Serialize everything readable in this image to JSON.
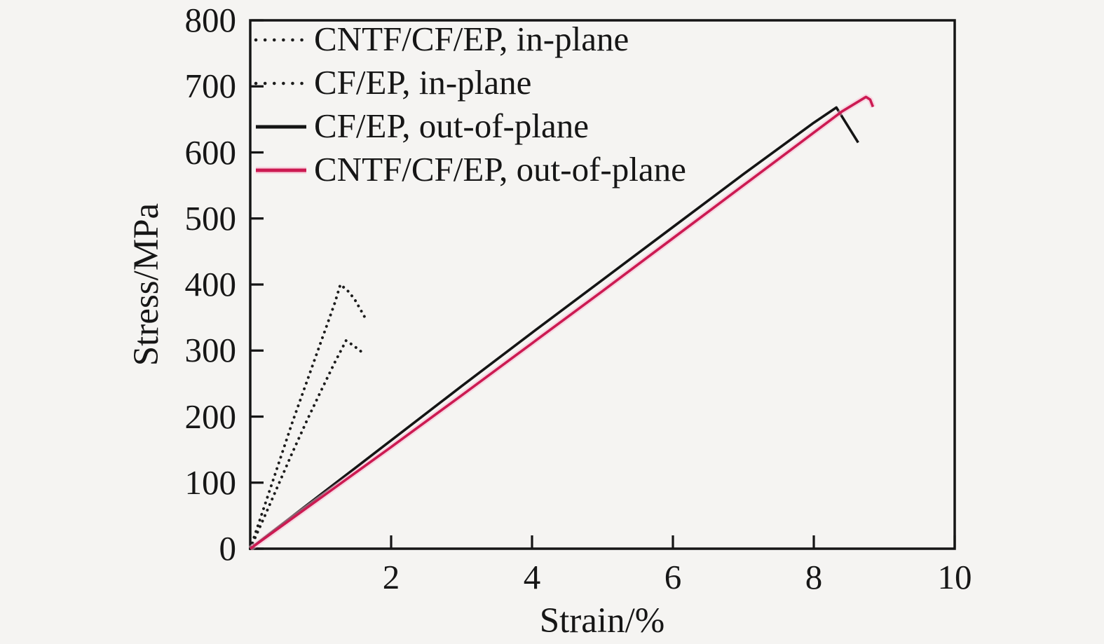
{
  "figure": {
    "background": "#f5f4f2",
    "frame_color": "#151515",
    "text_color": "#161616",
    "accent_red": "#cc1a52",
    "accent_red_halo": "#f9b7cf"
  },
  "chart_data": {
    "type": "line",
    "title": "",
    "xlabel": "Strain/%",
    "ylabel": "Stress/MPa",
    "xlim": [
      0,
      10
    ],
    "ylim": [
      0,
      800
    ],
    "x_ticks": [
      2,
      4,
      6,
      8,
      10
    ],
    "y_ticks": [
      0,
      100,
      200,
      300,
      400,
      500,
      600,
      700,
      800
    ],
    "grid": false,
    "legend_position": "top-left-inside",
    "series": [
      {
        "name": "CNTF/CF/EP, in-plane",
        "line_style": "dotted",
        "color": "#1c1c1c",
        "points": [
          [
            0,
            0
          ],
          [
            0.2,
            64
          ],
          [
            0.4,
            128
          ],
          [
            0.6,
            192
          ],
          [
            0.8,
            252
          ],
          [
            1.0,
            312
          ],
          [
            1.1,
            342
          ],
          [
            1.2,
            372
          ],
          [
            1.28,
            400
          ],
          [
            1.38,
            391
          ],
          [
            1.48,
            378
          ],
          [
            1.56,
            363
          ],
          [
            1.65,
            346
          ]
        ]
      },
      {
        "name": "CF/EP, in-plane",
        "line_style": "dotted",
        "color": "#1c1c1c",
        "points": [
          [
            0,
            0
          ],
          [
            0.2,
            48
          ],
          [
            0.4,
            97
          ],
          [
            0.6,
            146
          ],
          [
            0.8,
            193
          ],
          [
            1.0,
            238
          ],
          [
            1.2,
            282
          ],
          [
            1.36,
            315
          ],
          [
            1.46,
            308
          ],
          [
            1.58,
            298
          ]
        ]
      },
      {
        "name": "CF/EP, out-of-plane",
        "line_style": "solid",
        "color": "#141414",
        "points": [
          [
            0,
            0
          ],
          [
            1,
            82
          ],
          [
            2,
            164
          ],
          [
            3,
            246
          ],
          [
            4,
            327
          ],
          [
            5,
            407
          ],
          [
            6,
            487
          ],
          [
            7,
            567
          ],
          [
            8,
            645
          ],
          [
            8.32,
            668
          ],
          [
            8.63,
            615
          ]
        ]
      },
      {
        "name": "CNTF/CF/EP, out-of-plane",
        "line_style": "solid",
        "color": "#cc1a52",
        "halo": true,
        "points": [
          [
            0,
            0
          ],
          [
            1,
            77
          ],
          [
            2,
            154
          ],
          [
            3,
            232
          ],
          [
            4,
            311
          ],
          [
            5,
            390
          ],
          [
            6,
            470
          ],
          [
            7,
            550
          ],
          [
            8,
            630
          ],
          [
            8.4,
            662
          ],
          [
            8.74,
            684
          ],
          [
            8.8,
            680
          ],
          [
            8.84,
            669
          ]
        ]
      }
    ]
  }
}
